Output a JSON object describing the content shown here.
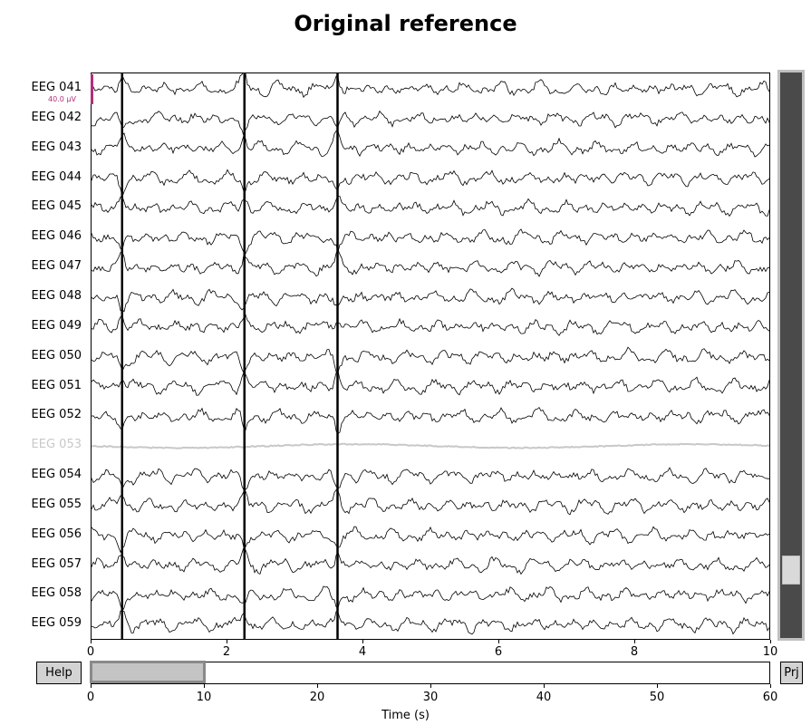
{
  "title": "Original reference",
  "channels": [
    {
      "name": "EEG 041",
      "bad": false
    },
    {
      "name": "EEG 042",
      "bad": false
    },
    {
      "name": "EEG 043",
      "bad": false
    },
    {
      "name": "EEG 044",
      "bad": false
    },
    {
      "name": "EEG 045",
      "bad": false
    },
    {
      "name": "EEG 046",
      "bad": false
    },
    {
      "name": "EEG 047",
      "bad": false
    },
    {
      "name": "EEG 048",
      "bad": false
    },
    {
      "name": "EEG 049",
      "bad": false
    },
    {
      "name": "EEG 050",
      "bad": false
    },
    {
      "name": "EEG 051",
      "bad": false
    },
    {
      "name": "EEG 052",
      "bad": false
    },
    {
      "name": "EEG 053",
      "bad": true
    },
    {
      "name": "EEG 054",
      "bad": false
    },
    {
      "name": "EEG 055",
      "bad": false
    },
    {
      "name": "EEG 056",
      "bad": false
    },
    {
      "name": "EEG 057",
      "bad": false
    },
    {
      "name": "EEG 058",
      "bad": false
    },
    {
      "name": "EEG 059",
      "bad": false
    }
  ],
  "scale_label": "40.0 µV",
  "time_axis": {
    "ticks": [
      "0",
      "2",
      "4",
      "6",
      "8",
      "10"
    ],
    "range": [
      0,
      10
    ]
  },
  "overview_axis": {
    "ticks": [
      "0",
      "10",
      "20",
      "30",
      "40",
      "50",
      "60"
    ],
    "range": [
      0,
      60
    ],
    "label": "Time (s)"
  },
  "view_window": {
    "start": 0,
    "end": 10
  },
  "channel_scroll": {
    "total_channels": 60,
    "first_visible_index": 40,
    "visible_count": 19
  },
  "buttons": {
    "help": "Help",
    "projectors": "Prj"
  },
  "artifact_times": [
    0.45,
    2.25,
    3.62
  ],
  "colors": {
    "trace": "#000000",
    "bad_trace": "#c8c8c8",
    "scalebar": "#b0307a"
  }
}
